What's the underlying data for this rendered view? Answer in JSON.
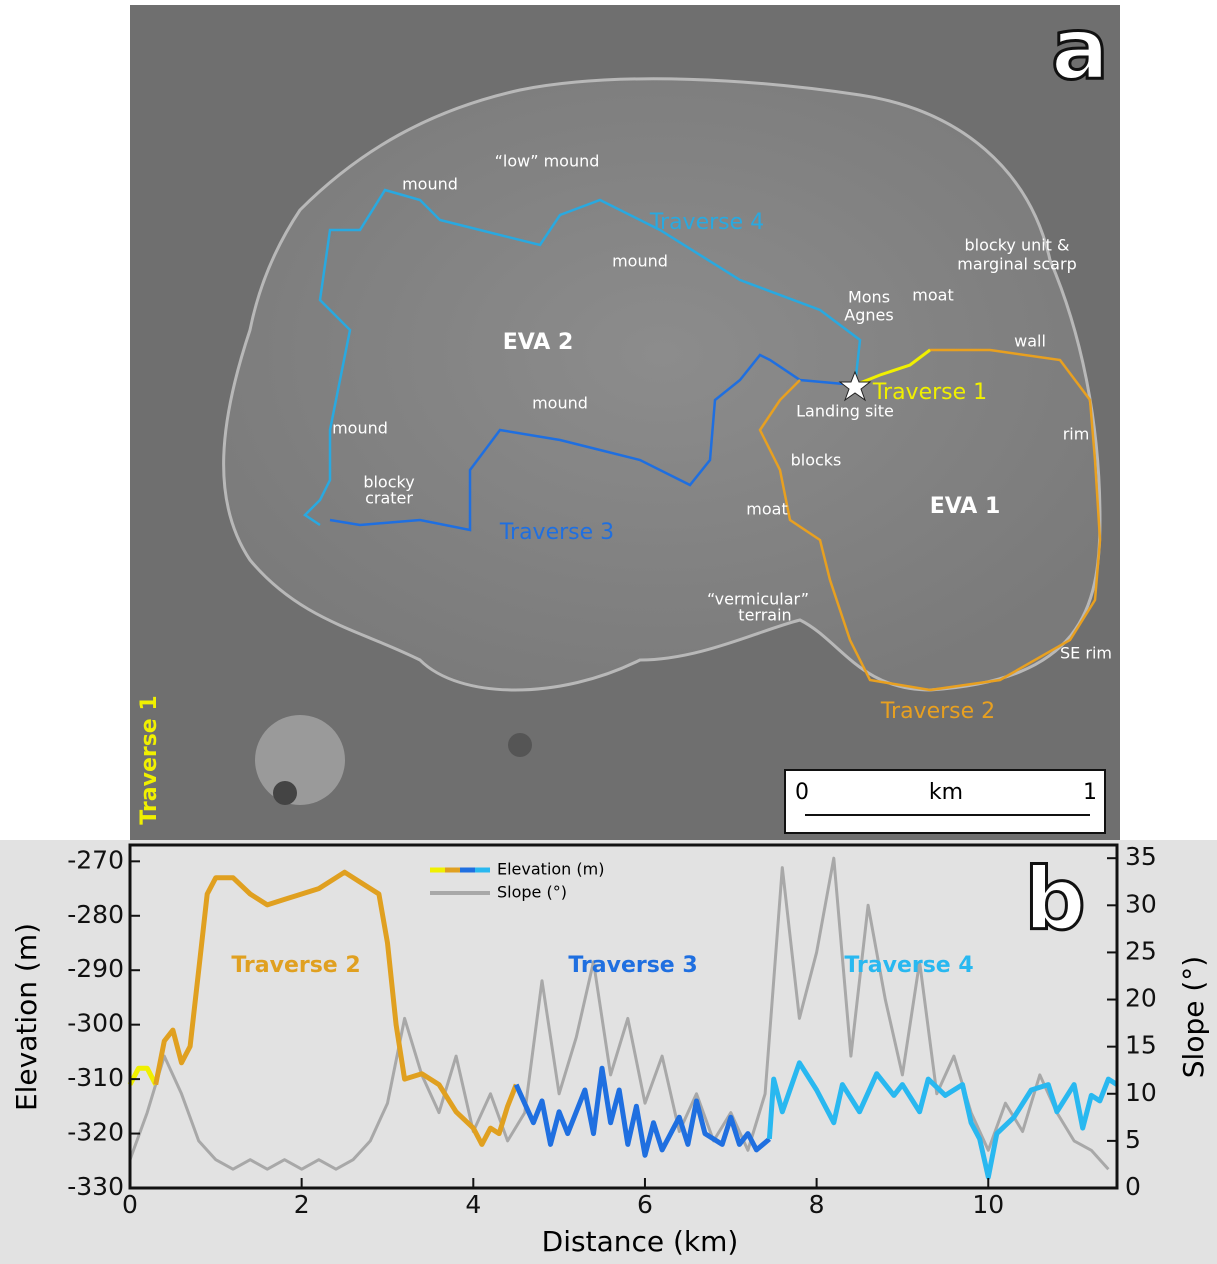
{
  "panel_a": {
    "panel_label": "a",
    "labels": [
      {
        "text": "mound"
      },
      {
        "text": "“low” mound"
      },
      {
        "text": "Traverse 4"
      },
      {
        "text": "mound"
      },
      {
        "text": "blocky unit &"
      },
      {
        "text": "marginal scarp"
      },
      {
        "text": "Mons"
      },
      {
        "text": "Agnes"
      },
      {
        "text": "moat"
      },
      {
        "text": "wall"
      },
      {
        "text": "EVA 2"
      },
      {
        "text": "Traverse 1"
      },
      {
        "text": "Landing site"
      },
      {
        "text": "mound"
      },
      {
        "text": "mound"
      },
      {
        "text": "rim"
      },
      {
        "text": "blocks"
      },
      {
        "text": "blocky"
      },
      {
        "text": "crater"
      },
      {
        "text": "EVA 1"
      },
      {
        "text": "moat"
      },
      {
        "text": "Traverse 3"
      },
      {
        "text": "“vermicular”"
      },
      {
        "text": "terrain"
      },
      {
        "text": "SE rim"
      },
      {
        "text": "Traverse 2"
      }
    ],
    "scale_bar": {
      "start": "0",
      "unit": "km",
      "end": "1"
    }
  },
  "chart_data": {
    "type": "line",
    "panel_label": "b",
    "x_label": "Distance (km)",
    "y_label": "Elevation (m)",
    "y2_label": "Slope (°)",
    "elevation_legend": "Elevation (m)",
    "xlim": [
      0,
      11.5
    ],
    "xticks": [
      0,
      2,
      4,
      6,
      8,
      10
    ],
    "ylim": [
      -330,
      -267
    ],
    "yticks": [
      -330,
      -320,
      -310,
      -300,
      -290,
      -280,
      -270
    ],
    "y2lim": [
      0,
      36.4
    ],
    "y2ticks": [
      0,
      5,
      10,
      15,
      20,
      25,
      30,
      35
    ],
    "series": [
      {
        "name": "Slope (°)",
        "color": "#a8a8a8",
        "axis": "y2",
        "x": [
          0,
          0.2,
          0.4,
          0.6,
          0.8,
          1.0,
          1.2,
          1.4,
          1.6,
          1.8,
          2.0,
          2.2,
          2.4,
          2.6,
          2.8,
          3.0,
          3.2,
          3.4,
          3.6,
          3.8,
          4.0,
          4.2,
          4.4,
          4.6,
          4.8,
          5.0,
          5.2,
          5.4,
          5.6,
          5.8,
          6.0,
          6.2,
          6.4,
          6.6,
          6.8,
          7.0,
          7.2,
          7.4,
          7.6,
          7.8,
          8.0,
          8.2,
          8.4,
          8.6,
          8.8,
          9.0,
          9.2,
          9.4,
          9.6,
          9.8,
          10.0,
          10.2,
          10.4,
          10.6,
          10.8,
          11.0,
          11.2,
          11.4
        ],
        "values": [
          3,
          8,
          14,
          10,
          5,
          3,
          2,
          3,
          2,
          3,
          2,
          3,
          2,
          3,
          5,
          9,
          18,
          12,
          8,
          14,
          6,
          10,
          5,
          8,
          22,
          10,
          16,
          24,
          12,
          18,
          9,
          14,
          6,
          10,
          5,
          8,
          4,
          10,
          34,
          18,
          25,
          35,
          14,
          30,
          20,
          12,
          24,
          10,
          14,
          8,
          4,
          9,
          6,
          12,
          8,
          5,
          4,
          2
        ]
      },
      {
        "name": "Traverse 1",
        "color": "#f0f000",
        "x": [
          0,
          0.1,
          0.2,
          0.3
        ],
        "values": [
          -311,
          -308,
          -308,
          -311
        ]
      },
      {
        "name": "Traverse 2",
        "color": "#e0a020",
        "x": [
          0.3,
          0.4,
          0.5,
          0.6,
          0.7,
          0.8,
          0.9,
          1.0,
          1.2,
          1.4,
          1.6,
          1.8,
          2.0,
          2.2,
          2.4,
          2.5,
          2.7,
          2.9,
          3.0,
          3.1,
          3.2,
          3.4,
          3.6,
          3.8,
          4.0,
          4.1,
          4.2,
          4.3,
          4.4,
          4.5
        ],
        "values": [
          -311,
          -303,
          -301,
          -307,
          -304,
          -290,
          -276,
          -273,
          -273,
          -276,
          -278,
          -277,
          -276,
          -275,
          -273,
          -272,
          -274,
          -276,
          -285,
          -300,
          -310,
          -309,
          -311,
          -316,
          -319,
          -322,
          -319,
          -320,
          -315,
          -311
        ]
      },
      {
        "name": "Traverse 3",
        "color": "#1f6fe0",
        "x": [
          4.5,
          4.7,
          4.8,
          4.9,
          5.0,
          5.1,
          5.3,
          5.4,
          5.5,
          5.6,
          5.7,
          5.8,
          5.9,
          6.0,
          6.1,
          6.2,
          6.4,
          6.5,
          6.6,
          6.7,
          6.9,
          7.0,
          7.1,
          7.2,
          7.3,
          7.45
        ],
        "values": [
          -311,
          -318,
          -314,
          -322,
          -316,
          -320,
          -312,
          -320,
          -308,
          -318,
          -312,
          -322,
          -315,
          -324,
          -318,
          -323,
          -317,
          -322,
          -314,
          -320,
          -322,
          -317,
          -322,
          -320,
          -323,
          -321
        ]
      },
      {
        "name": "Traverse 4",
        "color": "#29b8f0",
        "x": [
          7.45,
          7.5,
          7.6,
          7.8,
          8.0,
          8.2,
          8.3,
          8.5,
          8.7,
          8.9,
          9.0,
          9.2,
          9.3,
          9.5,
          9.7,
          9.8,
          9.9,
          10.0,
          10.1,
          10.3,
          10.5,
          10.7,
          10.8,
          11.0,
          11.1,
          11.2,
          11.3,
          11.4,
          11.5
        ],
        "values": [
          -321,
          -310,
          -316,
          -307,
          -312,
          -318,
          -311,
          -316,
          -309,
          -313,
          -311,
          -316,
          -310,
          -313,
          -311,
          -318,
          -321,
          -328,
          -320,
          -317,
          -312,
          -311,
          -316,
          -311,
          -319,
          -313,
          -314,
          -310,
          -311
        ]
      }
    ]
  }
}
